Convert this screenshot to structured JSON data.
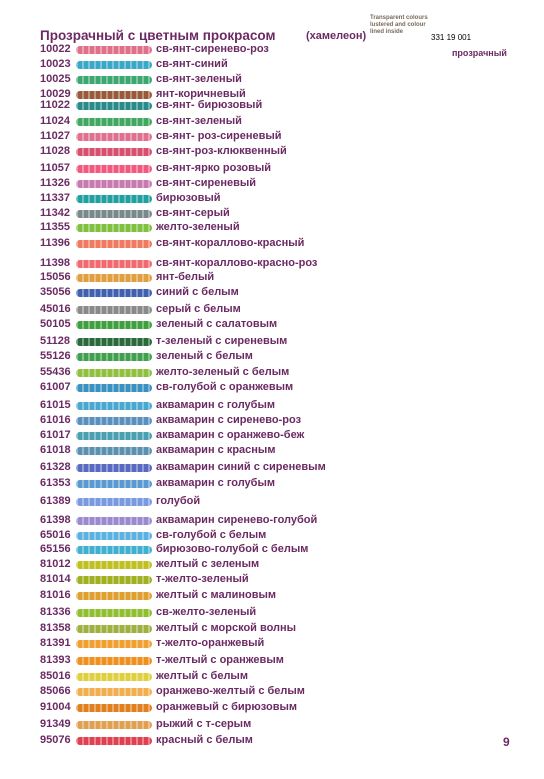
{
  "header": {
    "title": "Прозрачный с цветным прокрасом",
    "subtitle": "(хамелеон)",
    "note": "Transparent colours lustered and colour lined inside",
    "article": "331 19 001",
    "kind": "прозрачный"
  },
  "items": [
    [
      "10022",
      "св-янт-сиренево-роз"
    ],
    [
      "10023",
      "св-янт-синий"
    ],
    [
      "10025",
      "св-янт-зеленый"
    ],
    [
      "10029",
      "янт-коричневый"
    ],
    [
      "11022",
      "св-янт- бирюзовый"
    ],
    [
      "11024",
      "св-янт-зеленый"
    ],
    [
      "11027",
      "св-янт- роз-сиреневый"
    ],
    [
      "11028",
      "св-янт-роз-клюквенный"
    ],
    [
      "11057",
      "св-янт-ярко розовый"
    ],
    [
      "11326",
      "св-янт-сиреневый"
    ],
    [
      "11337",
      "бирюзовый"
    ],
    [
      "11342",
      "св-янт-серый"
    ],
    [
      "11355",
      "желто-зеленый"
    ],
    [
      "11396",
      "св-янт-кораллово-красный"
    ],
    [
      "11398",
      "св-янт-кораллово-красно-роз"
    ],
    [
      "15056",
      "янт-белый"
    ],
    [
      "35056",
      "синий с белым"
    ],
    [
      "45016",
      "серый с белым"
    ],
    [
      "50105",
      "зеленый с салатовым"
    ],
    [
      "51128",
      "т-зеленый с сиреневым"
    ],
    [
      "55126",
      "зеленый с белым"
    ],
    [
      "55436",
      "желто-зеленый с белым"
    ],
    [
      "61007",
      "св-голубой с оранжевым"
    ],
    [
      "61015",
      "аквамарин с голубым"
    ],
    [
      "61016",
      "аквамарин с сиренево-роз"
    ],
    [
      "61017",
      "аквамарин с оранжево-беж"
    ],
    [
      "61018",
      "аквамарин с красным"
    ],
    [
      "61328",
      "аквамарин синий с сиреневым"
    ],
    [
      "61353",
      "аквамарин с голубым"
    ],
    [
      "61389",
      "голубой"
    ],
    [
      "61398",
      "аквамарин сиренево-голубой"
    ],
    [
      "65016",
      "св-голубой с белым"
    ],
    [
      "65156",
      "бирюзово-голубой с белым"
    ],
    [
      "81012",
      "желтый с зеленым"
    ],
    [
      "81014",
      "т-желто-зеленый"
    ],
    [
      "81016",
      "желтый с малиновым"
    ],
    [
      "81336",
      "св-желто-зеленый"
    ],
    [
      "81358",
      "желтый с морской волны"
    ],
    [
      "81391",
      "т-желто-оранжевый"
    ],
    [
      "81393",
      "т-желтый с оранжевым"
    ],
    [
      "85016",
      "желтый с белым"
    ],
    [
      "85066",
      "оранжево-желтый с белым"
    ],
    [
      "91004",
      "оранжевый с бирюзовым"
    ],
    [
      "91349",
      "рыжий с т-серым"
    ],
    [
      "95076",
      "красный с белым"
    ]
  ],
  "footer": {
    "page": "9"
  }
}
